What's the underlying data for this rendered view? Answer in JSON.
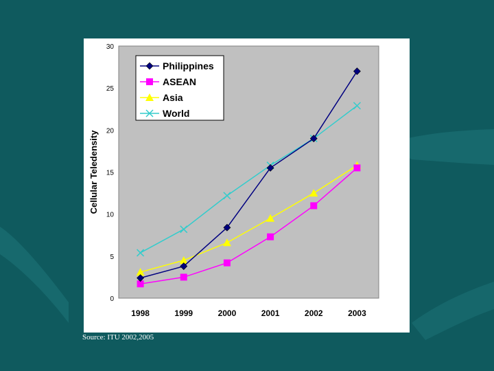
{
  "source_note": "Source: ITU 2002,2005",
  "colors": {
    "background": "#0f5a5e",
    "plot_area": "#c0c0c0",
    "panel": "#ffffff"
  },
  "chart_data": {
    "type": "line",
    "title": "",
    "xlabel": "",
    "ylabel": "Cellular Teledensity",
    "categories": [
      "1998",
      "1999",
      "2000",
      "2001",
      "2002",
      "2003"
    ],
    "ylim": [
      0,
      30
    ],
    "yticks": [
      "0",
      "5",
      "10",
      "15",
      "20",
      "25",
      "30"
    ],
    "grid": false,
    "legend_position": "top-left",
    "series": [
      {
        "name": "Philippines",
        "color": "#000080",
        "marker": "diamond",
        "values": [
          2.4,
          3.8,
          8.4,
          15.5,
          19.0,
          27.0
        ]
      },
      {
        "name": "ASEAN",
        "color": "#ff00ff",
        "marker": "square",
        "values": [
          1.7,
          2.5,
          4.2,
          7.3,
          11.0,
          15.5
        ]
      },
      {
        "name": "Asia",
        "color": "#ffff00",
        "marker": "triangle",
        "values": [
          3.1,
          4.5,
          6.6,
          9.5,
          12.5,
          15.8
        ]
      },
      {
        "name": "World",
        "color": "#33cccc",
        "marker": "x",
        "values": [
          5.4,
          8.2,
          12.2,
          15.8,
          19.0,
          22.9
        ]
      }
    ]
  }
}
